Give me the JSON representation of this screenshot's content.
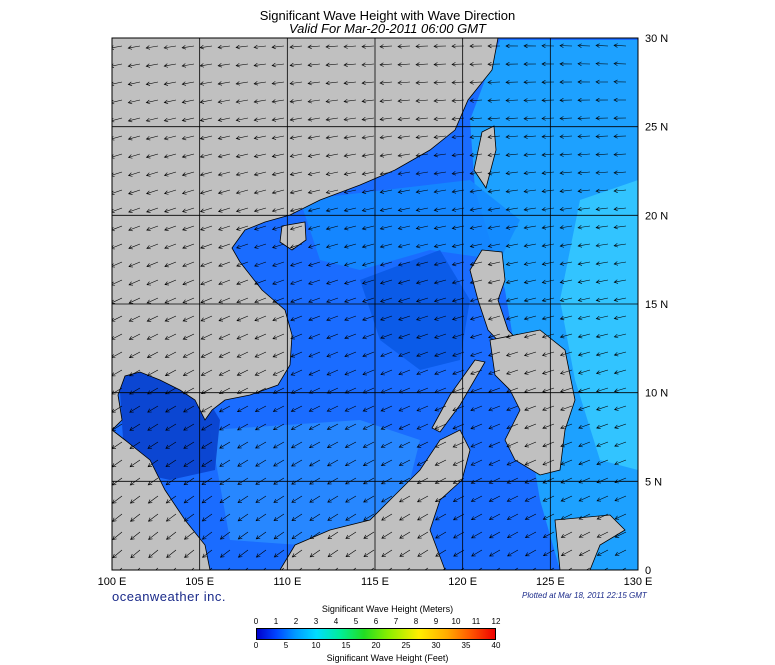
{
  "title": "Significant Wave Height with Wave Direction",
  "subtitle": "Valid For Mar-20-2011 06:00 GMT",
  "brand": "oceanweather inc.",
  "plotted": "Plotted at Mar 18, 2011 22:15 GMT",
  "map": {
    "lon_labels": [
      "100 E",
      "105 E",
      "110 E",
      "115 E",
      "120 E",
      "125 E",
      "130 E"
    ],
    "lat_labels": [
      "30 N",
      "25 N",
      "20 N",
      "15 N",
      "10 N",
      "5 N",
      "0"
    ],
    "lon_range": [
      100,
      130
    ],
    "lat_range": [
      0,
      30
    ],
    "land_color": "#c0c0c0",
    "water_color": "#0a66ff"
  },
  "colorbar": {
    "title_meters": "Significant Wave Height (Meters)",
    "title_feet": "Significant Wave Height (Feet)",
    "meter_ticks": [
      "0",
      "1",
      "2",
      "3",
      "4",
      "5",
      "6",
      "7",
      "8",
      "9",
      "10",
      "11",
      "12"
    ],
    "feet_ticks": [
      "0",
      "5",
      "10",
      "15",
      "20",
      "25",
      "30",
      "35",
      "40"
    ]
  }
}
